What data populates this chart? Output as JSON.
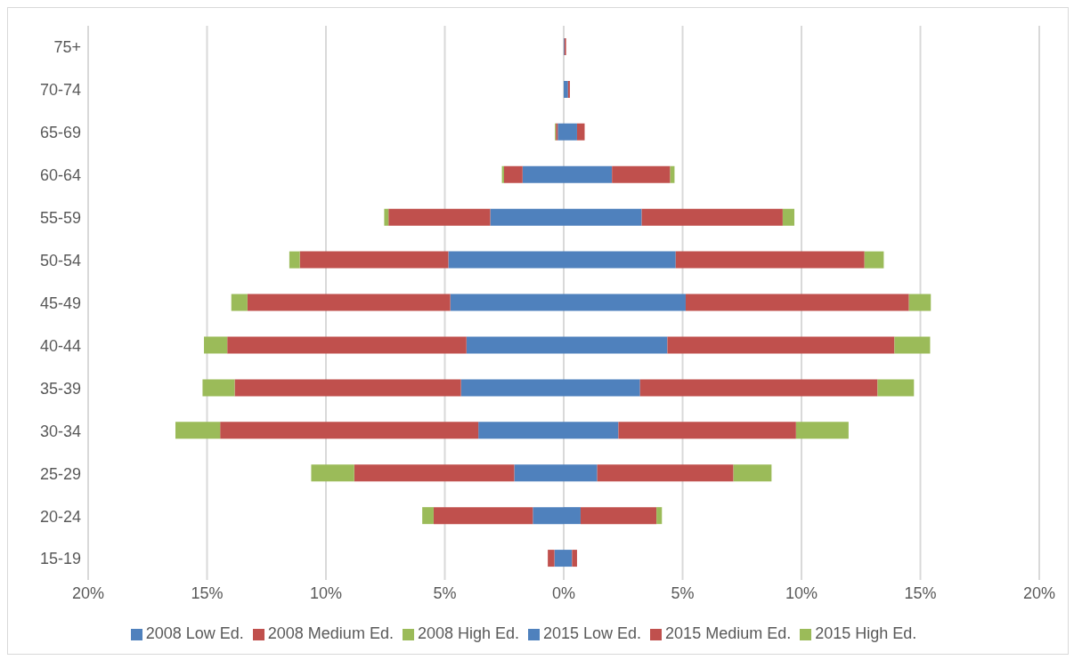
{
  "chart_data": {
    "type": "bar",
    "orientation": "horizontal",
    "stacked": true,
    "categories": [
      "75+",
      "70-74",
      "65-69",
      "60-64",
      "55-59",
      "50-54",
      "45-49",
      "40-44",
      "35-39",
      "30-34",
      "25-29",
      "20-24",
      "15-19"
    ],
    "series": [
      {
        "name": "2008 Low Ed.",
        "color": "#4f81bd",
        "values": [
          0,
          0,
          -0.25,
          -1.73,
          -3.09,
          -4.85,
          -4.77,
          -4.09,
          -4.32,
          -3.59,
          -2.08,
          -1.3,
          -0.39
        ]
      },
      {
        "name": "2008 Medium Ed.",
        "color": "#c0504d",
        "values": [
          0,
          0,
          -0.08,
          -0.78,
          -4.28,
          -6.25,
          -8.53,
          -10.06,
          -9.52,
          -10.86,
          -6.73,
          -4.17,
          -0.28
        ]
      },
      {
        "name": "2008 High Ed.",
        "color": "#9bbb59",
        "values": [
          0,
          0,
          -0.04,
          -0.09,
          -0.18,
          -0.44,
          -0.68,
          -0.98,
          -1.35,
          -1.88,
          -1.81,
          -0.48,
          0
        ]
      },
      {
        "name": "2015 Low Ed.",
        "color": "#4f81bd",
        "values": [
          0.03,
          0.18,
          0.56,
          2.03,
          3.28,
          4.71,
          5.13,
          4.36,
          3.21,
          2.3,
          1.41,
          0.71,
          0.35
        ]
      },
      {
        "name": "2015 Medium Ed.",
        "color": "#c0504d",
        "values": [
          0.07,
          0.08,
          0.32,
          2.45,
          5.93,
          7.94,
          9.39,
          9.55,
          9.99,
          7.47,
          5.73,
          3.19,
          0.21
        ]
      },
      {
        "name": "2015 High Ed.",
        "color": "#9bbb59",
        "values": [
          0,
          0,
          0,
          0.18,
          0.49,
          0.81,
          0.92,
          1.5,
          1.53,
          2.21,
          1.6,
          0.23,
          0
        ]
      }
    ],
    "xlim": [
      -20,
      20
    ],
    "xticks": [
      {
        "value": -20,
        "label": "20%"
      },
      {
        "value": -15,
        "label": "15%"
      },
      {
        "value": -10,
        "label": "10%"
      },
      {
        "value": -5,
        "label": "5%"
      },
      {
        "value": 0,
        "label": "0%"
      },
      {
        "value": 5,
        "label": "5%"
      },
      {
        "value": 10,
        "label": "10%"
      },
      {
        "value": 15,
        "label": "15%"
      },
      {
        "value": 20,
        "label": "20%"
      }
    ],
    "grid": "x",
    "legend": "bottom"
  }
}
